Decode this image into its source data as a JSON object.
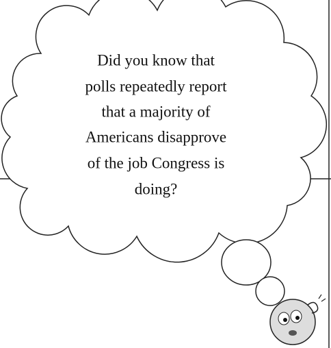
{
  "bubble": {
    "lines": [
      "Did you know that",
      "polls repeatedly report",
      "that a majority of",
      "Americans disapprove",
      "of the job Congress is",
      "doing?"
    ]
  }
}
